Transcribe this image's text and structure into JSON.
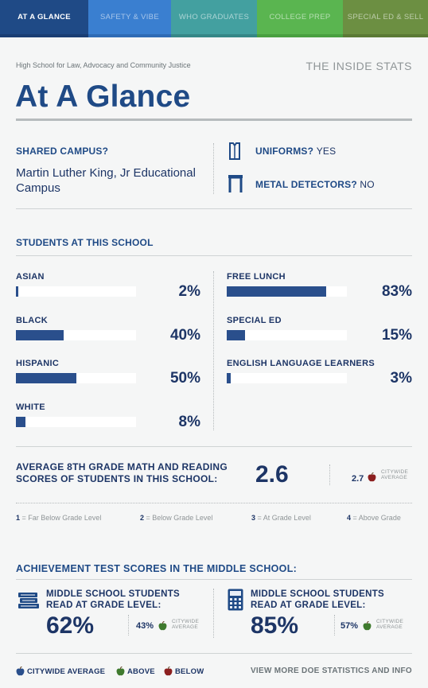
{
  "tabs": [
    {
      "label": "At A Glance",
      "color": "#1f4a86",
      "underline": "#1a3e73",
      "active": true
    },
    {
      "label": "Safety & Vibe",
      "color": "#3a7fd0",
      "underline": "#2e6bb5",
      "active": false
    },
    {
      "label": "Who Graduates",
      "color": "#43a0a0",
      "underline": "#358787",
      "active": false
    },
    {
      "label": "College Prep",
      "color": "#5ab550",
      "underline": "#49a040",
      "active": false
    },
    {
      "label": "Special Ed & Sell",
      "color": "#6c8f42",
      "underline": "#5b7a35",
      "active": false
    }
  ],
  "header": {
    "school_name": "High School for Law, Advocacy and Community Justice",
    "inside_stats": "THE INSIDE STATS",
    "title": "At A Glance"
  },
  "campus": {
    "shared_label": "SHARED CAMPUS?",
    "shared_value": "Martin Luther King, Jr Educational Campus",
    "uniforms_label": "UNIFORMS?",
    "uniforms_value": "YES",
    "detectors_label": "METAL DETECTORS?",
    "detectors_value": "NO"
  },
  "students": {
    "title": "STUDENTS AT THIS SCHOOL",
    "left": [
      {
        "name": "ASIAN",
        "value": 2,
        "display": "2%"
      },
      {
        "name": "BLACK",
        "value": 40,
        "display": "40%"
      },
      {
        "name": "HISPANIC",
        "value": 50,
        "display": "50%"
      },
      {
        "name": "WHITE",
        "value": 8,
        "display": "8%"
      }
    ],
    "right": [
      {
        "name": "FREE LUNCH",
        "value": 83,
        "display": "83%"
      },
      {
        "name": "SPECIAL ED",
        "value": 15,
        "display": "15%"
      },
      {
        "name": "ENGLISH LANGUAGE LEARNERS",
        "value": 3,
        "display": "3%"
      }
    ]
  },
  "scores": {
    "label": "AVERAGE 8TH GRADE MATH AND READING SCORES OF STUDENTS IN THIS SCHOOL:",
    "value": "2.6",
    "citywide_value": "2.7",
    "citywide_label_1": "CITYWIDE",
    "citywide_label_2": "AVERAGE",
    "citywide_status": "below",
    "legend": [
      {
        "num": "1",
        "text": "= Far Below Grade Level"
      },
      {
        "num": "2",
        "text": "= Below Grade Level"
      },
      {
        "num": "3",
        "text": "= At Grade Level"
      },
      {
        "num": "4",
        "text": "= Above Grade"
      }
    ]
  },
  "achievement": {
    "title": "ACHIEVEMENT TEST SCORES IN THE MIDDLE SCHOOL:",
    "reading": {
      "head_1": "MIDDLE SCHOOL STUDENTS",
      "head_2": "READ AT GRADE LEVEL:",
      "value": "62%",
      "citywide": "43%",
      "status": "above",
      "icon": "books-icon"
    },
    "math": {
      "head_1": "MIDDLE SCHOOL STUDENTS",
      "head_2": "READ AT GRADE LEVEL:",
      "value": "85%",
      "citywide": "57%",
      "status": "above",
      "icon": "calculator-icon"
    },
    "citywide_label_1": "CITYWIDE",
    "citywide_label_2": "AVERAGE"
  },
  "footer": {
    "legend": [
      {
        "label": "CITYWIDE AVERAGE",
        "color": "#2a4f8c"
      },
      {
        "label": "ABOVE",
        "color": "#3f7a2e"
      },
      {
        "label": "BELOW",
        "color": "#8c1f1f"
      }
    ],
    "link": "VIEW MORE DOE STATISTICS AND INFO"
  },
  "colors": {
    "apple_above": "#3f7a2e",
    "apple_below": "#8c1f1f",
    "apple_citywide": "#2a4f8c"
  }
}
